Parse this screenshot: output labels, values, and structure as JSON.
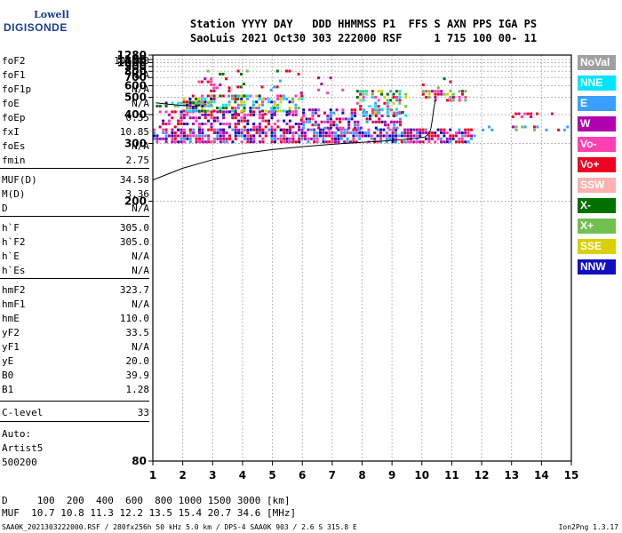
{
  "logo": {
    "line1": "Lowell",
    "line2": "DIGISONDE"
  },
  "header": {
    "row1": "Station YYYY DAY   DDD HHMMSS P1  FFS S AXN PPS IGA PS",
    "row2": "SaoLuis 2021 Oct30 303 222000 RSF     1 715 100 00- 11"
  },
  "params": [
    {
      "name": "foF2",
      "value": "10.300"
    },
    {
      "name": "foF1",
      "value": "N/A"
    },
    {
      "name": "foF1p",
      "value": "N/A"
    },
    {
      "name": "foE",
      "value": "N/A"
    },
    {
      "name": "foEp",
      "value": "0.35"
    },
    {
      "name": "fxI",
      "value": "10.85"
    },
    {
      "name": "foEs",
      "value": "N/A"
    },
    {
      "name": "fmin",
      "value": "2.75"
    },
    {
      "name": "MUF(D)",
      "value": "34.58"
    },
    {
      "name": "M(D)",
      "value": "3.36"
    },
    {
      "name": "D",
      "value": "N/A"
    },
    {
      "name": "h`F",
      "value": "305.0"
    },
    {
      "name": "h`F2",
      "value": "305.0"
    },
    {
      "name": "h`E",
      "value": "N/A"
    },
    {
      "name": "h`Es",
      "value": "N/A"
    },
    {
      "name": "hmF2",
      "value": "323.7"
    },
    {
      "name": "hmF1",
      "value": "N/A"
    },
    {
      "name": "hmE",
      "value": "110.0"
    },
    {
      "name": "yF2",
      "value": "33.5"
    },
    {
      "name": "yF1",
      "value": "N/A"
    },
    {
      "name": "yE",
      "value": "20.0"
    },
    {
      "name": "B0",
      "value": "39.9"
    },
    {
      "name": "B1",
      "value": "1.28"
    },
    {
      "name": "C-level",
      "value": "33"
    }
  ],
  "auto": {
    "line1": "Auto:",
    "line2": "Artist5",
    "line3": "500200"
  },
  "legend": [
    {
      "label": "NoVal",
      "color": "#a0a0a0"
    },
    {
      "label": "NNE",
      "color": "#00e5ff"
    },
    {
      "label": "E",
      "color": "#3aa0ff"
    },
    {
      "label": "W",
      "color": "#b000b0"
    },
    {
      "label": "Vo-",
      "color": "#ff40b0"
    },
    {
      "label": "Vo+",
      "color": "#f00020"
    },
    {
      "label": "SSW",
      "color": "#ffb0b0"
    },
    {
      "label": "X-",
      "color": "#007000"
    },
    {
      "label": "X+",
      "color": "#70c050"
    },
    {
      "label": "SSE",
      "color": "#d8d000"
    },
    {
      "label": "NNW",
      "color": "#1010c0"
    }
  ],
  "bottom": {
    "d_row": "D     100  200  400  600  800 1000 1500 3000 [km]",
    "muf_row": "MUF  10.7 10.8 11.3 12.2 13.5 15.4 20.7 34.6 [MHz]"
  },
  "footer": {
    "left": "SAA0K_2021303222000.RSF / 280fx256h 50 kHz 5.0 km / DPS-4 SAA0K 903 / 2.6 S 315.8 E",
    "right": "Ion2Png 1.3.17"
  },
  "chart_data": {
    "type": "scatter",
    "title": "",
    "xlabel": "",
    "ylabel": "",
    "xlim": [
      1,
      15
    ],
    "ylim": [
      80,
      1280
    ],
    "y_scale": "reciprocal",
    "x_ticks": [
      1,
      2,
      3,
      4,
      5,
      6,
      7,
      8,
      9,
      10,
      11,
      12,
      13,
      14,
      15
    ],
    "y_ticks": [
      80,
      200,
      300,
      400,
      500,
      600,
      700,
      800,
      900,
      1000,
      1100,
      1280
    ],
    "grid": true,
    "traces": [
      {
        "name": "o-trace",
        "points": [
          [
            1.0,
            228
          ],
          [
            2.0,
            247
          ],
          [
            3.0,
            263
          ],
          [
            4.0,
            276
          ],
          [
            5.0,
            285
          ],
          [
            6.0,
            292
          ],
          [
            7.0,
            298
          ],
          [
            8.0,
            303
          ],
          [
            9.0,
            308
          ],
          [
            9.8,
            314
          ],
          [
            10.1,
            318
          ],
          [
            10.25,
            330
          ],
          [
            10.3,
            345
          ]
        ]
      },
      {
        "name": "x-trace",
        "points": [
          [
            10.3,
            345
          ],
          [
            10.35,
            380
          ],
          [
            10.4,
            430
          ],
          [
            10.45,
            480
          ],
          [
            10.5,
            485
          ]
        ]
      },
      {
        "name": "upper-trace",
        "points": [
          [
            1.1,
            463
          ],
          [
            1.5,
            455
          ],
          [
            2.0,
            447
          ],
          [
            2.5,
            443
          ]
        ]
      }
    ],
    "echo_regions": [
      {
        "f": [
          1.0,
          11.8
        ],
        "h": [
          300,
          345
        ],
        "density": 0.7,
        "colors": [
          "#f00020",
          "#ff40b0",
          "#b000b0",
          "#1010c0",
          "#3aa0ff"
        ]
      },
      {
        "f": [
          12.0,
          15.0
        ],
        "h": [
          335,
          355
        ],
        "density": 0.25,
        "colors": [
          "#f00020",
          "#b000b0",
          "#3aa0ff",
          "#70c050"
        ]
      },
      {
        "f": [
          1.2,
          6.0
        ],
        "h": [
          340,
          420
        ],
        "density": 0.45,
        "colors": [
          "#f00020",
          "#ff40b0",
          "#b000b0",
          "#1010c0"
        ]
      },
      {
        "f": [
          2.0,
          6.0
        ],
        "h": [
          420,
          520
        ],
        "density": 0.55,
        "colors": [
          "#d8d000",
          "#f00020",
          "#00e5ff",
          "#3aa0ff",
          "#70c050",
          "#ff40b0",
          "#007000",
          "#1010c0"
        ]
      },
      {
        "f": [
          1.1,
          3.0
        ],
        "h": [
          440,
          470
        ],
        "density": 0.5,
        "colors": [
          "#1010c0",
          "#007000",
          "#70c050",
          "#00e5ff"
        ]
      },
      {
        "f": [
          6.0,
          9.3
        ],
        "h": [
          345,
          430
        ],
        "density": 0.45,
        "colors": [
          "#f00020",
          "#1010c0",
          "#3aa0ff",
          "#b000b0",
          "#ff40b0"
        ]
      },
      {
        "f": [
          7.8,
          9.5
        ],
        "h": [
          400,
          560
        ],
        "density": 0.5,
        "colors": [
          "#d8d000",
          "#f00020",
          "#3aa0ff",
          "#007000",
          "#70c050",
          "#ff40b0",
          "#00e5ff"
        ]
      },
      {
        "f": [
          10.0,
          11.5
        ],
        "h": [
          470,
          560
        ],
        "density": 0.5,
        "colors": [
          "#f00020",
          "#ff40b0",
          "#d8d000",
          "#b000b0",
          "#70c050"
        ]
      },
      {
        "f": [
          2.5,
          3.6
        ],
        "h": [
          560,
          700
        ],
        "density": 0.35,
        "colors": [
          "#b000b0",
          "#ff40b0",
          "#f00020"
        ]
      },
      {
        "f": [
          2.8,
          6.0
        ],
        "h": [
          750,
          830
        ],
        "density": 0.12,
        "colors": [
          "#d8d000",
          "#007000",
          "#70c050",
          "#f00020"
        ]
      },
      {
        "f": [
          6.5,
          7.5
        ],
        "h": [
          540,
          760
        ],
        "density": 0.1,
        "colors": [
          "#b000b0",
          "#ff40b0",
          "#3aa0ff"
        ]
      },
      {
        "f": [
          3.5,
          6.0
        ],
        "h": [
          380,
          760
        ],
        "density": 0.05,
        "colors": [
          "#b000b0",
          "#f00020",
          "#007000",
          "#3aa0ff"
        ]
      },
      {
        "f": [
          10.0,
          11.2
        ],
        "h": [
          560,
          700
        ],
        "density": 0.12,
        "colors": [
          "#007000",
          "#70c050",
          "#f00020"
        ]
      },
      {
        "f": [
          13.0,
          14.5
        ],
        "h": [
          395,
          410
        ],
        "density": 0.4,
        "colors": [
          "#b000b0",
          "#f00020",
          "#ff40b0"
        ]
      }
    ]
  }
}
